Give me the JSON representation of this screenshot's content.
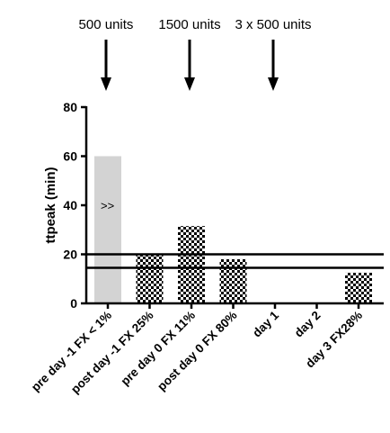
{
  "chart_data": {
    "type": "bar",
    "title": "",
    "xlabel": "",
    "ylabel": "ttpeak (min)",
    "ylim": [
      0,
      80
    ],
    "y_ticks": [
      0,
      20,
      40,
      60,
      80
    ],
    "grid": false,
    "categories": [
      "pre day -1 FX < 1%",
      "post day -1 FX 25%",
      "pre day 0 FX 11%",
      "post day 0 FX 80%",
      "day 1",
      "day 2",
      "day 3 FX28%"
    ],
    "values": [
      60,
      20,
      31.5,
      18,
      null,
      null,
      12.5
    ],
    "bar_styles": [
      "solid-gray",
      "checkered",
      "checkered",
      "checkered",
      "none",
      "none",
      "checkered"
    ],
    "bar_text": [
      ">>",
      "",
      "",
      "",
      "",
      "",
      ""
    ],
    "reference_lines_y": [
      20,
      14.5
    ],
    "annotations": [
      {
        "label": "500 units",
        "at_category_index": 0
      },
      {
        "label": "1500 units",
        "at_category_index": 2
      },
      {
        "label": "3 x 500 units",
        "at_category_index": 4
      }
    ],
    "colors": {
      "solid_bar": "#d3d3d3",
      "check_dark": "#000000",
      "check_light": "#ffffff",
      "axis": "#000000"
    }
  }
}
